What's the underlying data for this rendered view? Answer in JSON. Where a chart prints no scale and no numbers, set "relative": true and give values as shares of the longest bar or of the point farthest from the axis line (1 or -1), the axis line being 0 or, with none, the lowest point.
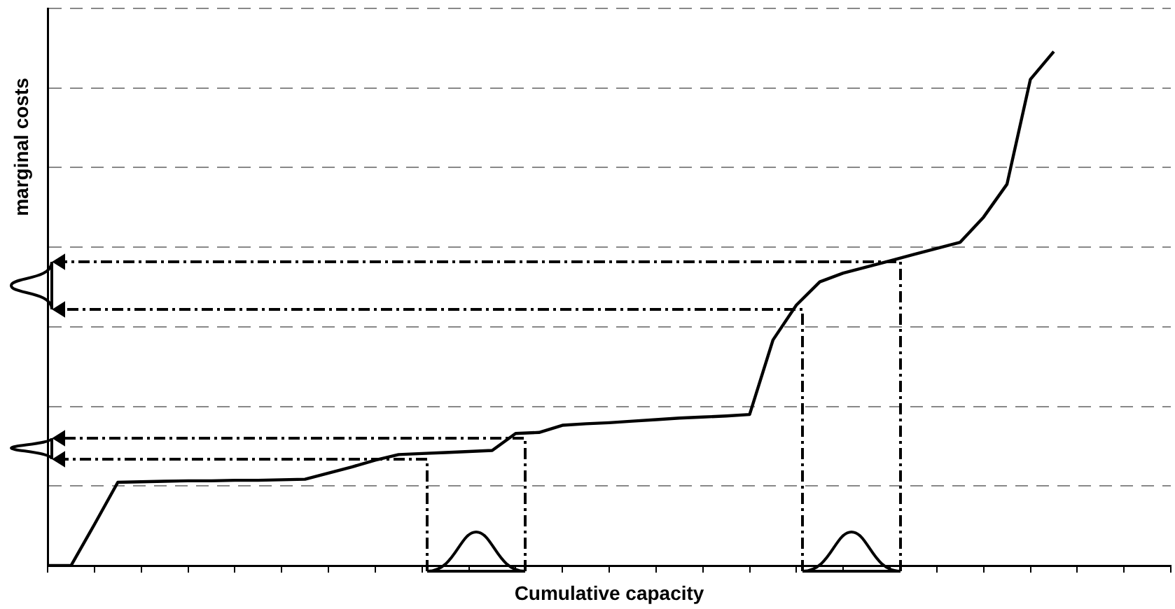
{
  "chart_data": {
    "type": "line",
    "xlabel": "Cumulative capacity",
    "ylabel": "marginal costs",
    "relative": true,
    "categories": [
      null,
      null,
      null,
      null,
      null,
      null,
      null,
      null,
      null,
      null,
      null,
      null,
      null,
      null,
      null,
      null,
      null,
      null,
      null,
      null,
      null,
      null,
      null,
      null,
      null,
      null,
      null,
      null,
      null,
      null,
      null,
      null,
      null,
      null,
      null,
      null,
      null,
      null,
      null,
      null,
      null,
      null,
      null,
      null,
      null,
      null,
      null,
      null,
      null
    ],
    "series": [
      {
        "color": "#000000",
        "values": [
          0,
          0,
          0.08,
          0.162,
          0.163,
          0.164,
          0.165,
          0.165,
          0.166,
          0.166,
          0.167,
          0.168,
          0.18,
          0.192,
          0.205,
          0.216,
          0.218,
          0.22,
          0.222,
          0.224,
          0.257,
          0.259,
          0.273,
          0.276,
          0.278,
          0.281,
          0.284,
          0.287,
          0.289,
          0.291,
          0.294,
          0.439,
          0.507,
          0.552,
          0.569,
          0.581,
          0.593,
          0.605,
          0.617,
          0.629,
          0.678,
          0.742,
          0.946,
          1,
          null,
          null,
          null,
          null,
          null
        ]
      }
    ],
    "grid": "y",
    "marker": "none",
    "line_style": "solid"
  }
}
